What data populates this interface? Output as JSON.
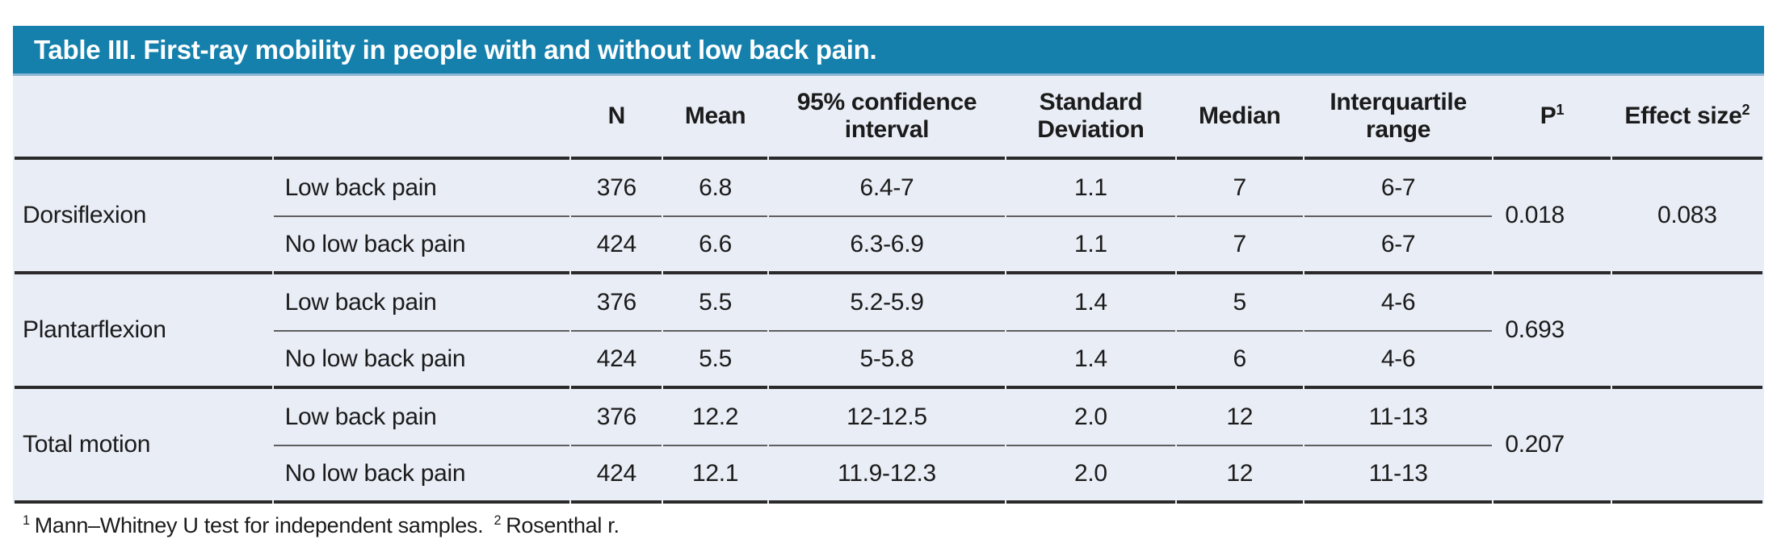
{
  "title": "Table III. First-ray mobility in people with and without low back pain.",
  "header": {
    "cols": [
      {
        "label": ""
      },
      {
        "label": ""
      },
      {
        "label": "N"
      },
      {
        "label": "Mean"
      },
      {
        "label": "95% confidence interval"
      },
      {
        "label": "Standard Deviation"
      },
      {
        "label": "Median"
      },
      {
        "label": "Interquartile range"
      },
      {
        "label": "P",
        "sup": "1"
      },
      {
        "label": "Effect size",
        "sup": "2"
      }
    ]
  },
  "groups": [
    {
      "label": "Dorsiflexion",
      "p": "0.018",
      "effect_size": "0.083",
      "rows": [
        {
          "condition": "Low back pain",
          "n": "376",
          "mean": "6.8",
          "ci": "6.4-7",
          "sd": "1.1",
          "median": "7",
          "iqr": "6-7"
        },
        {
          "condition": "No low back pain",
          "n": "424",
          "mean": "6.6",
          "ci": "6.3-6.9",
          "sd": "1.1",
          "median": "7",
          "iqr": "6-7"
        }
      ]
    },
    {
      "label": "Plantarflexion",
      "p": "0.693",
      "effect_size": "",
      "rows": [
        {
          "condition": "Low back pain",
          "n": "376",
          "mean": "5.5",
          "ci": "5.2-5.9",
          "sd": "1.4",
          "median": "5",
          "iqr": "4-6"
        },
        {
          "condition": "No low back pain",
          "n": "424",
          "mean": "5.5",
          "ci": "5-5.8",
          "sd": "1.4",
          "median": "6",
          "iqr": "4-6"
        }
      ]
    },
    {
      "label": "Total motion",
      "p": "0.207",
      "effect_size": "",
      "rows": [
        {
          "condition": "Low back pain",
          "n": "376",
          "mean": "12.2",
          "ci": "12-12.5",
          "sd": "2.0",
          "median": "12",
          "iqr": "11-13"
        },
        {
          "condition": "No low back pain",
          "n": "424",
          "mean": "12.1",
          "ci": "11.9-12.3",
          "sd": "2.0",
          "median": "12",
          "iqr": "11-13"
        }
      ]
    }
  ],
  "footnote": {
    "sup1": "1",
    "text1": "Mann–Whitney U test for independent samples.",
    "sup2": "2",
    "text2": "Rosenthal r."
  },
  "colors": {
    "accent": "#1580ac",
    "accent_edge": "#8ab5d2",
    "table_background": "#e9edf6",
    "heavy_rule": "#2a2a2a",
    "thin_rule": "#5f5f5f",
    "text": "#1b1b1b"
  }
}
